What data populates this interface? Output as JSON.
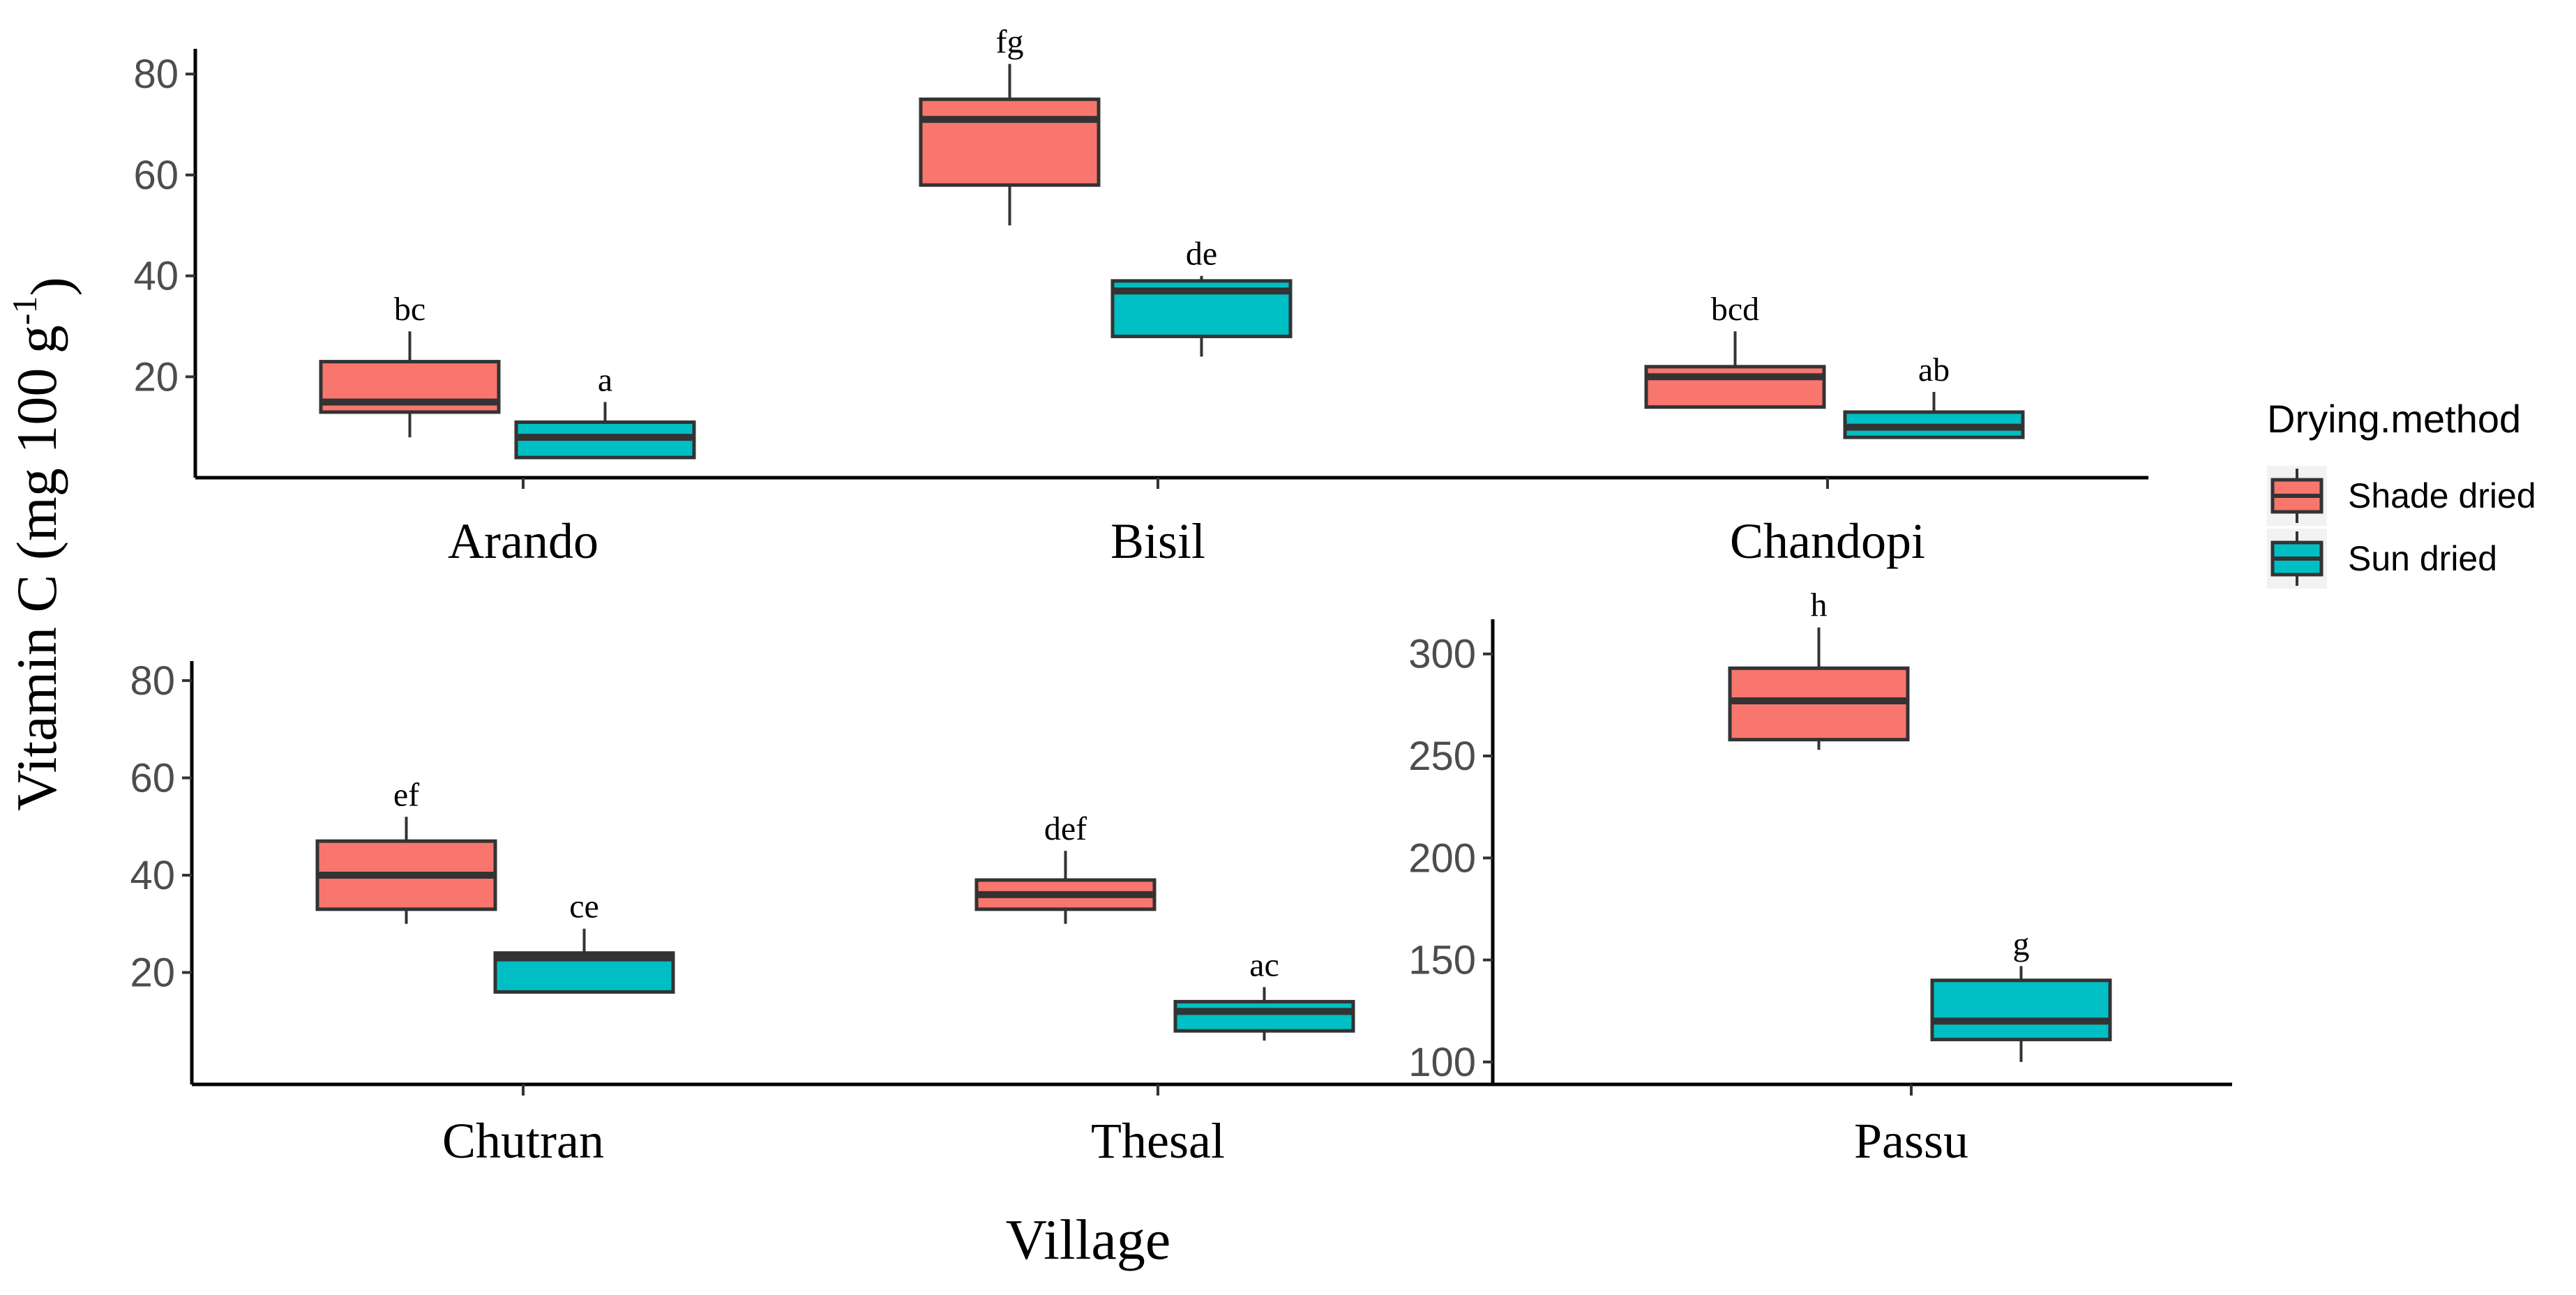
{
  "chart_data": {
    "type": "boxplot",
    "layout": "facet-grid 2x3, free y scales",
    "xlabel": "Village",
    "ylabel": "Vitamin C (mg 100 g",
    "ylabel_sup": "-1",
    "ylabel_close": ")",
    "legend": {
      "title": "Drying.method",
      "position": "right",
      "entries": [
        {
          "name": "Shade dried",
          "color": "#F8766D"
        },
        {
          "name": "Sun dried",
          "color": "#00BFC4"
        }
      ]
    },
    "panels": [
      {
        "name": "Arando",
        "ylim": [
          0,
          85
        ],
        "yticks": [
          20,
          40,
          60,
          80
        ],
        "boxes": [
          {
            "group": "Shade dried",
            "min": 8,
            "q1": 13,
            "median": 15,
            "q3": 23,
            "max": 29,
            "label": "bc"
          },
          {
            "group": "Sun dried",
            "min": 4,
            "q1": 4,
            "median": 8,
            "q3": 11,
            "max": 15,
            "label": "a"
          }
        ]
      },
      {
        "name": "Bisil",
        "ylim": [
          0,
          85
        ],
        "yticks": [
          20,
          40,
          60,
          80
        ],
        "boxes": [
          {
            "group": "Shade dried",
            "min": 50,
            "q1": 58,
            "median": 71,
            "q3": 75,
            "max": 82,
            "label": "fg"
          },
          {
            "group": "Sun dried",
            "min": 24,
            "q1": 28,
            "median": 37,
            "q3": 39,
            "max": 40,
            "label": "de"
          }
        ]
      },
      {
        "name": "Chandopi",
        "ylim": [
          0,
          85
        ],
        "yticks": [
          20,
          40,
          60,
          80
        ],
        "boxes": [
          {
            "group": "Shade dried",
            "min": 14,
            "q1": 14,
            "median": 20,
            "q3": 22,
            "max": 29,
            "label": "bcd"
          },
          {
            "group": "Sun dried",
            "min": 8,
            "q1": 8,
            "median": 10,
            "q3": 13,
            "max": 17,
            "label": "ab"
          }
        ]
      },
      {
        "name": "Chutran",
        "ylim": [
          -3,
          84
        ],
        "yticks": [
          20,
          40,
          60,
          80
        ],
        "boxes": [
          {
            "group": "Shade dried",
            "min": 30,
            "q1": 33,
            "median": 40,
            "q3": 47,
            "max": 52,
            "label": "ef"
          },
          {
            "group": "Sun dried",
            "min": 16,
            "q1": 16,
            "median": 23,
            "q3": 24,
            "max": 29,
            "label": "ce"
          }
        ]
      },
      {
        "name": "Thesal",
        "ylim": [
          -3,
          84
        ],
        "yticks": [
          20,
          40,
          60,
          80
        ],
        "boxes": [
          {
            "group": "Shade dried",
            "min": 30,
            "q1": 33,
            "median": 36,
            "q3": 39,
            "max": 45,
            "label": "def"
          },
          {
            "group": "Sun dried",
            "min": 6,
            "q1": 8,
            "median": 12,
            "q3": 14,
            "max": 17,
            "label": "ac"
          }
        ]
      },
      {
        "name": "Passu",
        "ylim": [
          89,
          317
        ],
        "yticks": [
          100,
          150,
          200,
          250,
          300
        ],
        "boxes": [
          {
            "group": "Shade dried",
            "min": 253,
            "q1": 258,
            "median": 277,
            "q3": 293,
            "max": 313,
            "label": "h"
          },
          {
            "group": "Sun dried",
            "min": 100,
            "q1": 111,
            "median": 120,
            "q3": 140,
            "max": 147,
            "label": "g"
          }
        ]
      }
    ]
  }
}
